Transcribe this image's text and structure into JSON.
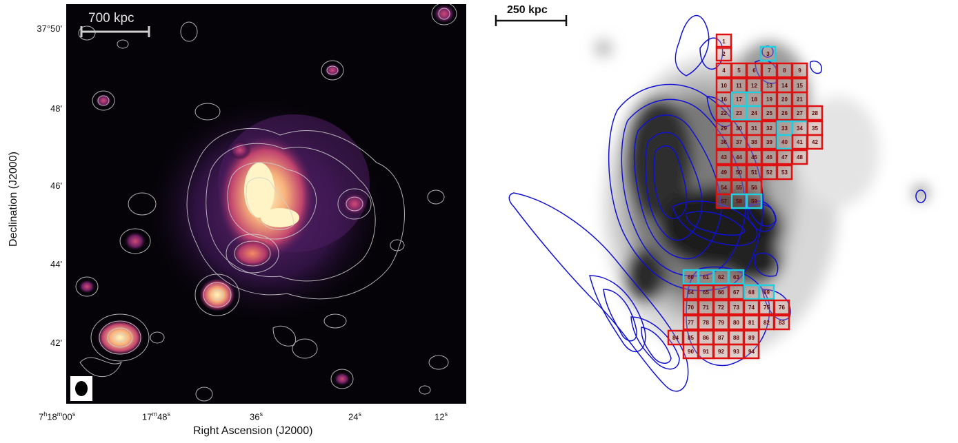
{
  "left_panel": {
    "scalebar_label": "700 kpc",
    "y_ticks": [
      "37°50'",
      "48'",
      "46'",
      "44'",
      "42'"
    ],
    "x_ticks": [
      {
        "base": "7",
        "h": "h",
        "mid": "18",
        "m": "m",
        "tail": "00",
        "s": "s"
      },
      {
        "base": "17",
        "m": "m",
        "tail": "48",
        "s": "s"
      },
      {
        "base": "36",
        "s": "s"
      },
      {
        "base": "24",
        "s": "s"
      },
      {
        "base": "12",
        "s": "s"
      }
    ],
    "x_axis_title": "Right Ascension (J2000)",
    "y_axis_title": "Declination (J2000)"
  },
  "right_panel": {
    "scalebar_label": "250 kpc",
    "grid_labels": [
      "1",
      "2",
      "3",
      "4",
      "5",
      "6",
      "7",
      "8",
      "9",
      "10",
      "11",
      "12",
      "13",
      "14",
      "15",
      "16",
      "17",
      "18",
      "19",
      "20",
      "21",
      "22",
      "23",
      "24",
      "25",
      "26",
      "27",
      "28",
      "29",
      "30",
      "31",
      "32",
      "33",
      "34",
      "35",
      "36",
      "37",
      "38",
      "39",
      "40",
      "41",
      "42",
      "43",
      "44",
      "45",
      "46",
      "47",
      "48",
      "49",
      "50",
      "51",
      "52",
      "53",
      "54",
      "55",
      "56",
      "57",
      "58",
      "59",
      "60",
      "61",
      "62",
      "63",
      "64",
      "65",
      "66",
      "67",
      "68",
      "69",
      "70",
      "71",
      "72",
      "73",
      "74",
      "75",
      "76",
      "77",
      "78",
      "79",
      "80",
      "81",
      "82",
      "83",
      "84",
      "85",
      "86",
      "87",
      "88",
      "89",
      "90",
      "91",
      "92",
      "93",
      "94"
    ],
    "highlighted": [
      "3",
      "17",
      "18",
      "23",
      "24",
      "33",
      "34",
      "40",
      "58",
      "59",
      "60",
      "61",
      "62",
      "63",
      "68",
      "69"
    ],
    "colors": {
      "box": "#e01010",
      "highlight": "#20d0e0",
      "contour": "#1010d0"
    }
  }
}
